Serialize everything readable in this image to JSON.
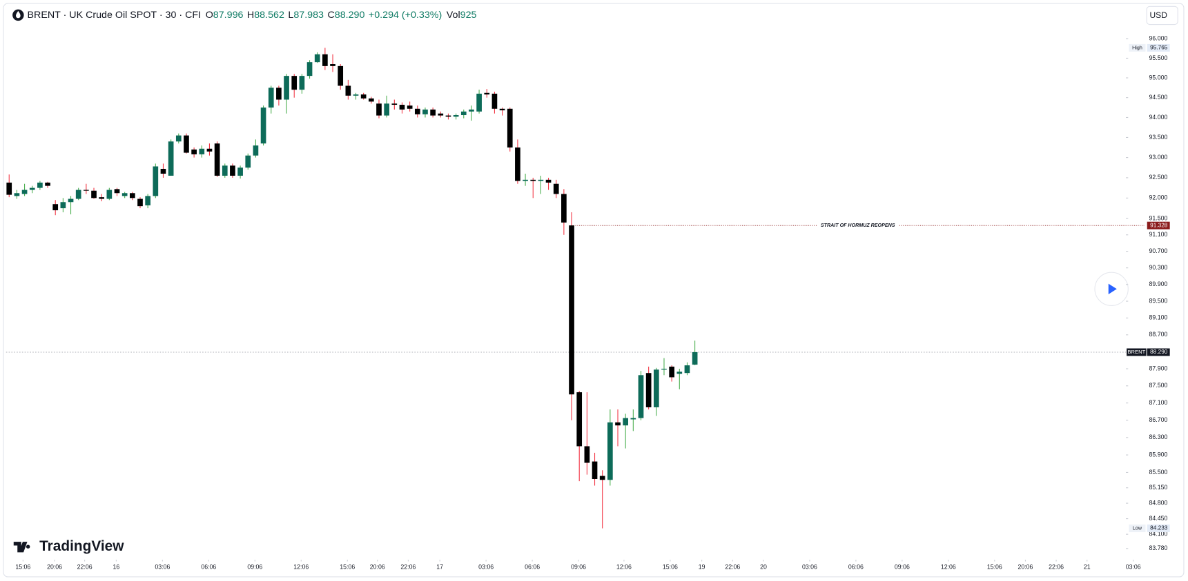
{
  "header": {
    "symbol": "BRENT · UK Crude Oil SPOT · 30 · CFI",
    "ohlc": [
      {
        "label": "O",
        "value": "87.996"
      },
      {
        "label": "H",
        "value": "88.562"
      },
      {
        "label": "L",
        "value": "87.983"
      },
      {
        "label": "C",
        "value": "88.290"
      }
    ],
    "change": "+0.294 (+0.33%)",
    "volume_label": "Vol",
    "volume": "925"
  },
  "currency": "USD",
  "logo": "TradingView",
  "chart_data": {
    "type": "candlestick",
    "open": [
      92.38,
      92.05,
      92.1,
      92.2,
      92.25,
      92.38,
      91.85,
      91.75,
      91.9,
      91.98,
      92.2,
      92.18,
      92.02,
      91.98,
      92.22,
      92.05,
      92.12,
      91.98,
      91.82,
      92.05,
      92.72,
      92.55,
      93.4,
      93.55,
      93.2,
      93.08,
      93.22,
      93.35,
      92.55,
      92.8,
      92.55,
      92.75,
      93.05,
      93.35,
      94.25,
      94.75,
      94.45,
      95.05,
      94.7,
      95.05,
      95.4,
      95.6,
      95.35,
      95.3,
      94.8,
      94.55,
      94.58,
      94.48,
      94.35,
      94.05,
      94.35,
      94.32,
      94.3,
      94.22,
      94.08,
      94.2,
      94.1,
      94.05,
      94.02,
      94.06,
      94.15,
      94.15,
      94.62,
      94.6,
      94.22,
      94.22,
      93.25,
      92.42,
      92.45,
      92.42,
      92.45,
      92.35,
      92.1,
      91.33,
      87.35,
      86.1,
      85.75,
      85.42,
      85.33,
      86.65,
      86.58,
      86.72,
      86.75,
      87.8,
      87.0,
      87.88,
      87.95,
      87.78,
      87.8,
      87.996
    ],
    "high": [
      92.58,
      92.2,
      92.35,
      92.3,
      92.42,
      92.4,
      91.95,
      92.0,
      92.05,
      92.25,
      92.35,
      92.25,
      92.1,
      92.25,
      92.25,
      92.15,
      92.15,
      92.02,
      92.1,
      92.85,
      92.85,
      93.45,
      93.6,
      93.6,
      93.25,
      93.3,
      93.35,
      93.4,
      92.85,
      92.85,
      92.8,
      93.1,
      93.45,
      94.3,
      94.8,
      94.8,
      95.1,
      95.1,
      95.1,
      95.45,
      95.65,
      95.765,
      95.6,
      95.35,
      94.95,
      94.62,
      94.62,
      94.52,
      94.45,
      94.55,
      94.45,
      94.38,
      94.4,
      94.3,
      94.25,
      94.25,
      94.15,
      94.1,
      94.1,
      94.2,
      94.3,
      94.7,
      94.72,
      94.65,
      94.25,
      94.25,
      93.45,
      92.6,
      92.5,
      92.55,
      92.5,
      92.45,
      92.22,
      91.65,
      87.38,
      87.35,
      85.95,
      85.55,
      86.95,
      86.95,
      86.85,
      86.95,
      87.85,
      87.95,
      87.92,
      88.15,
      87.98,
      87.9,
      88.05,
      88.562
    ],
    "low": [
      92.02,
      91.98,
      92.05,
      92.12,
      92.2,
      92.25,
      91.58,
      91.65,
      91.6,
      91.95,
      92.1,
      91.98,
      91.92,
      91.95,
      92.05,
      92.0,
      91.95,
      91.75,
      91.75,
      92.0,
      92.5,
      92.55,
      93.35,
      93.1,
      93.0,
      93.0,
      93.05,
      92.52,
      92.5,
      92.5,
      92.48,
      92.7,
      93.0,
      93.3,
      94.1,
      94.3,
      94.1,
      94.5,
      94.6,
      94.98,
      95.38,
      95.2,
      95.15,
      94.7,
      94.45,
      94.45,
      94.45,
      94.35,
      93.98,
      94.0,
      94.2,
      94.1,
      94.15,
      94.0,
      94.0,
      94.0,
      94.0,
      93.95,
      93.95,
      93.98,
      93.92,
      94.1,
      94.5,
      94.1,
      94.05,
      93.15,
      92.35,
      92.3,
      92.0,
      92.1,
      92.2,
      92.0,
      91.1,
      86.7,
      85.3,
      85.45,
      85.2,
      84.233,
      85.2,
      86.1,
      86.05,
      86.45,
      86.7,
      86.95,
      86.8,
      87.75,
      87.6,
      87.42,
      87.75,
      87.983
    ],
    "close": [
      92.08,
      92.12,
      92.2,
      92.25,
      92.38,
      92.3,
      91.7,
      91.9,
      91.98,
      92.2,
      92.18,
      92.0,
      91.98,
      92.2,
      92.12,
      92.12,
      92.0,
      91.8,
      92.05,
      92.78,
      92.6,
      93.4,
      93.55,
      93.12,
      93.08,
      93.22,
      93.15,
      92.55,
      92.8,
      92.55,
      92.75,
      93.05,
      93.3,
      94.25,
      94.75,
      94.45,
      95.05,
      94.7,
      95.05,
      95.4,
      95.6,
      95.3,
      95.3,
      94.8,
      94.55,
      94.58,
      94.48,
      94.4,
      94.05,
      94.35,
      94.32,
      94.2,
      94.22,
      94.08,
      94.2,
      94.05,
      94.05,
      94.02,
      94.06,
      94.15,
      94.2,
      94.6,
      94.58,
      94.22,
      94.18,
      93.25,
      92.42,
      92.45,
      92.42,
      92.45,
      92.38,
      92.1,
      91.4,
      87.3,
      86.1,
      85.72,
      85.35,
      85.33,
      86.65,
      86.58,
      86.75,
      86.75,
      87.75,
      87.0,
      87.88,
      87.9,
      87.7,
      87.83,
      87.98,
      88.29
    ],
    "up_color": "#0d6b59",
    "down_color": "#000000",
    "up_wick_color": "#4caf50",
    "down_wick_color": "#f23645",
    "log_scale": true,
    "ylim": [
      83.56,
      96.84
    ],
    "yticks": [
      {
        "value": 96,
        "label": "96.000"
      },
      {
        "value": 95.5,
        "label": "95.500"
      },
      {
        "value": 95,
        "label": "95.000"
      },
      {
        "value": 94.5,
        "label": "94.500"
      },
      {
        "value": 94,
        "label": "94.000"
      },
      {
        "value": 93.5,
        "label": "93.500"
      },
      {
        "value": 93,
        "label": "93.000"
      },
      {
        "value": 92.5,
        "label": "92.500"
      },
      {
        "value": 92,
        "label": "92.000"
      },
      {
        "value": 91.5,
        "label": "91.500"
      },
      {
        "value": 91.1,
        "label": "91.100"
      },
      {
        "value": 90.7,
        "label": "90.700"
      },
      {
        "value": 90.3,
        "label": "90.300"
      },
      {
        "value": 89.9,
        "label": "89.900"
      },
      {
        "value": 89.5,
        "label": "89.500"
      },
      {
        "value": 89.1,
        "label": "89.100"
      },
      {
        "value": 88.7,
        "label": "88.700"
      },
      {
        "value": 87.9,
        "label": "87.900"
      },
      {
        "value": 87.5,
        "label": "87.500"
      },
      {
        "value": 87.1,
        "label": "87.100"
      },
      {
        "value": 86.7,
        "label": "86.700"
      },
      {
        "value": 86.3,
        "label": "86.300"
      },
      {
        "value": 85.9,
        "label": "85.900"
      },
      {
        "value": 85.5,
        "label": "85.500"
      },
      {
        "value": 85.15,
        "label": "85.150"
      },
      {
        "value": 84.8,
        "label": "84.800"
      },
      {
        "value": 84.45,
        "label": "84.450"
      },
      {
        "value": 84.1,
        "label": "84.100"
      },
      {
        "value": 83.78,
        "label": "83.780"
      }
    ],
    "xlim": [
      -0.4,
      147.3
    ],
    "xticks": [
      {
        "value": 1.8,
        "label": "15:06"
      },
      {
        "value": 5.9,
        "label": "20:06"
      },
      {
        "value": 9.8,
        "label": "22:06"
      },
      {
        "value": 13.9,
        "label": "16"
      },
      {
        "value": 19.9,
        "label": "03:06"
      },
      {
        "value": 25.9,
        "label": "06:06"
      },
      {
        "value": 31.9,
        "label": "09:06"
      },
      {
        "value": 37.9,
        "label": "12:06"
      },
      {
        "value": 43.9,
        "label": "15:06"
      },
      {
        "value": 47.8,
        "label": "20:06"
      },
      {
        "value": 51.8,
        "label": "22:06"
      },
      {
        "value": 55.9,
        "label": "17"
      },
      {
        "value": 61.9,
        "label": "03:06"
      },
      {
        "value": 67.9,
        "label": "06:06"
      },
      {
        "value": 73.9,
        "label": "09:06"
      },
      {
        "value": 79.8,
        "label": "12:06"
      },
      {
        "value": 85.8,
        "label": "15:06"
      },
      {
        "value": 89.9,
        "label": "19"
      },
      {
        "value": 93.9,
        "label": "22:06"
      },
      {
        "value": 97.9,
        "label": "20"
      },
      {
        "value": 103.9,
        "label": "03:06"
      },
      {
        "value": 109.9,
        "label": "06:06"
      },
      {
        "value": 115.9,
        "label": "09:06"
      },
      {
        "value": 121.9,
        "label": "12:06"
      },
      {
        "value": 127.9,
        "label": "15:06"
      },
      {
        "value": 131.9,
        "label": "20:06"
      },
      {
        "value": 135.9,
        "label": "22:06"
      },
      {
        "value": 139.9,
        "label": "21"
      },
      {
        "value": 145.9,
        "label": "03:06"
      }
    ],
    "high_marker": {
      "name": "High",
      "value": 95.765
    },
    "low_marker": {
      "name": "Low",
      "value": 84.233
    },
    "last_price": {
      "name": "BRENT",
      "value": 88.29,
      "label": "88.290"
    },
    "annotation_line": {
      "text": "STRAIT OF HORMUZ REOPENS",
      "value": 91.328,
      "start": 73,
      "color": "#8b1c1c"
    }
  }
}
